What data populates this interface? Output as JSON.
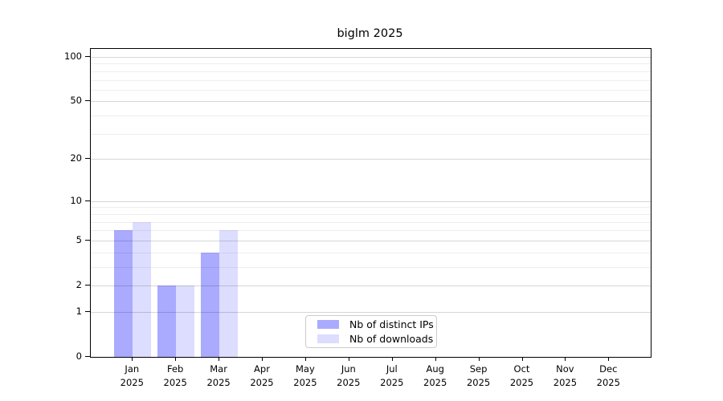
{
  "chart_data": {
    "type": "bar",
    "title": "biglm 2025",
    "xlabel": "",
    "ylabel": "",
    "categories": [
      {
        "month": "Jan",
        "year": "2025"
      },
      {
        "month": "Feb",
        "year": "2025"
      },
      {
        "month": "Mar",
        "year": "2025"
      },
      {
        "month": "Apr",
        "year": "2025"
      },
      {
        "month": "May",
        "year": "2025"
      },
      {
        "month": "Jun",
        "year": "2025"
      },
      {
        "month": "Jul",
        "year": "2025"
      },
      {
        "month": "Aug",
        "year": "2025"
      },
      {
        "month": "Sep",
        "year": "2025"
      },
      {
        "month": "Oct",
        "year": "2025"
      },
      {
        "month": "Nov",
        "year": "2025"
      },
      {
        "month": "Dec",
        "year": "2025"
      }
    ],
    "series": [
      {
        "name": "Nb of distinct IPs",
        "color": "#aaaaff",
        "values": [
          6,
          2,
          4,
          0,
          0,
          0,
          0,
          0,
          0,
          0,
          0,
          0
        ]
      },
      {
        "name": "Nb of downloads",
        "color": "#ddddff",
        "values": [
          7,
          2,
          6,
          0,
          0,
          0,
          0,
          0,
          0,
          0,
          0,
          0
        ]
      }
    ],
    "y_scale": "log10(value+1)",
    "y_major_ticks": [
      0,
      1,
      2,
      5,
      10,
      20,
      50,
      100
    ],
    "y_minor_ticks": [
      3,
      4,
      6,
      7,
      8,
      9,
      30,
      40,
      60,
      70,
      80,
      90
    ],
    "ylim": [
      0,
      113
    ],
    "grid": "horizontal",
    "legend_position": "lower center"
  },
  "colors": {
    "background": "#ffffff",
    "spine": "#000000",
    "grid_major": "#d6d6d6",
    "grid_minor": "#ededed",
    "legend_border": "#cccccc"
  }
}
